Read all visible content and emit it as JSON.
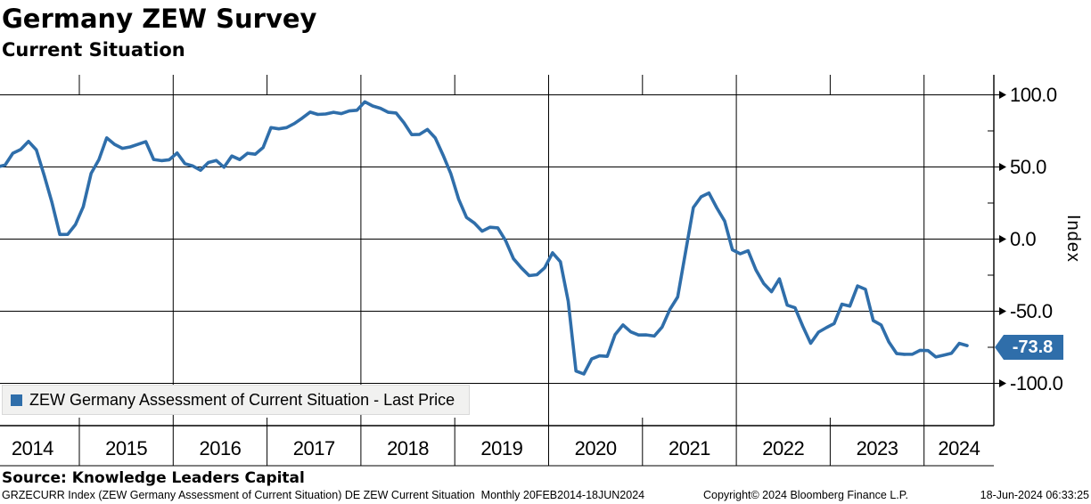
{
  "header": {
    "title": "Germany ZEW Survey",
    "subtitle": "Current Situation"
  },
  "legend": {
    "label": "ZEW Germany Assessment of Current Situation - Last Price",
    "swatch_color": "#2f6eaa"
  },
  "y_axis": {
    "title": "Index",
    "tick_labels": [
      "100.0",
      "50.0",
      "0.0",
      "-50.0",
      "-100.0"
    ],
    "tick_values": [
      100,
      50,
      0,
      -50,
      -100
    ],
    "minor_tick_values": [
      75,
      25,
      -25,
      -75
    ]
  },
  "x_axis": {
    "year_labels": [
      "2014",
      "2015",
      "2016",
      "2017",
      "2018",
      "2019",
      "2020",
      "2021",
      "2022",
      "2023",
      "2024"
    ]
  },
  "last_price_badge": {
    "value": "-73.8",
    "color": "#2f6eaa",
    "text_color": "#ffffff"
  },
  "footer": {
    "source": "Source: Knowledge Leaders Capital",
    "description": "GRZECURR Index (ZEW Germany Assessment of Current Situation) DE ZEW Current Situation  Monthly 20FEB2014-18JUN2024",
    "copyright": "Copyright© 2024 Bloomberg Finance L.P.",
    "timestamp": "18-Jun-2024 06:33:25"
  },
  "chart_data": {
    "type": "line",
    "title": "Germany ZEW Survey - Current Situation",
    "ylabel": "Index",
    "yticks": [
      100,
      50,
      0,
      -50,
      -100
    ],
    "ylim": [
      -129,
      114
    ],
    "grid": "major gridlines horizontal at 50-intervals, vertical every 2 years",
    "legend_position": "bottom-left",
    "x_start": "2014-02",
    "x_end": "2024-06",
    "x_range_label": "20FEB2014-18JUN2024",
    "frequency": "monthly",
    "last_value": -73.8,
    "series": [
      {
        "name": "ZEW Germany Assessment of Current Situation - Last Price",
        "color": "#2f6eaa",
        "values": [
          50.0,
          51.3,
          59.5,
          62.1,
          67.7,
          61.8,
          44.3,
          25.4,
          3.2,
          3.3,
          10.0,
          22.4,
          45.5,
          55.1,
          70.2,
          65.7,
          62.9,
          63.9,
          65.7,
          67.5,
          55.2,
          54.4,
          55.0,
          59.7,
          52.3,
          50.7,
          47.7,
          53.1,
          54.5,
          49.8,
          57.6,
          55.1,
          59.5,
          58.8,
          63.5,
          77.3,
          76.4,
          77.3,
          80.1,
          83.9,
          88.0,
          86.4,
          86.7,
          87.9,
          87.0,
          88.8,
          89.3,
          95.2,
          92.3,
          90.7,
          87.9,
          87.4,
          80.6,
          72.4,
          72.6,
          76.0,
          70.1,
          58.2,
          45.3,
          27.6,
          15.0,
          11.1,
          5.5,
          8.2,
          7.8,
          -1.1,
          -13.5,
          -19.9,
          -25.3,
          -24.7,
          -19.9,
          -9.5,
          -15.7,
          -43.1,
          -91.5,
          -93.5,
          -83.1,
          -80.9,
          -81.3,
          -66.2,
          -59.5,
          -64.3,
          -66.5,
          -66.4,
          -67.2,
          -61.0,
          -48.8,
          -40.1,
          -9.1,
          21.9,
          29.3,
          31.9,
          21.6,
          12.5,
          -7.4,
          -10.2,
          -8.1,
          -21.4,
          -30.8,
          -36.5,
          -27.6,
          -45.8,
          -47.6,
          -60.5,
          -72.2,
          -64.5,
          -61.4,
          -58.6,
          -45.1,
          -46.5,
          -32.5,
          -34.8,
          -56.5,
          -59.5,
          -71.3,
          -79.4,
          -79.9,
          -79.8,
          -77.1,
          -77.3,
          -81.7,
          -80.5,
          -79.2,
          -72.3,
          -73.8
        ]
      }
    ]
  }
}
